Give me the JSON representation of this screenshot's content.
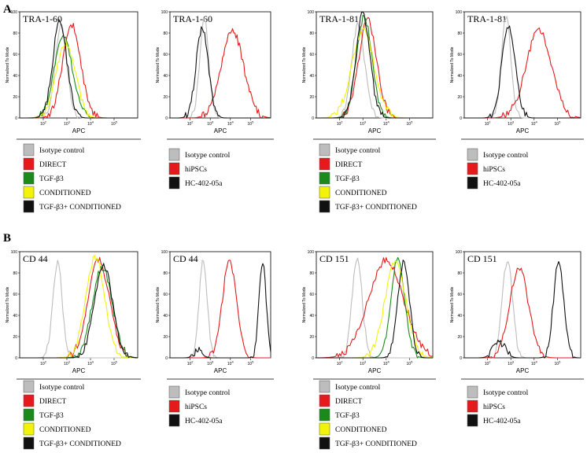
{
  "panels": [
    "A",
    "B"
  ],
  "colors": {
    "isotype": "#bdbdbd",
    "direct": "#e41a1c",
    "tgf": "#1b8a1b",
    "conditioned": "#f2f20a",
    "combo": "#111111",
    "hipscs": "#e41a1c",
    "hc": "#111111"
  },
  "legend_treatment": [
    "Isotype control",
    "DIRECT",
    "TGF-β3",
    "CONDITIONED",
    "TGF-β3+ CONDITIONED"
  ],
  "legend_cells": [
    "Isotype control",
    "hiPSCs",
    "HC-402-05a"
  ],
  "chart_data": [
    {
      "type": "line",
      "panel": "A",
      "title": "TRA-1-60",
      "xlabel": "APC",
      "ylabel": "Normalized To Mode",
      "xscale": "log",
      "xlim": [
        1,
        6
      ],
      "ylim": [
        0,
        100
      ],
      "yticks": [
        0,
        20,
        40,
        60,
        80,
        100
      ],
      "xtick_labels": [
        "10^2",
        "10^3",
        "10^4",
        "10^5"
      ],
      "series": [
        {
          "name": "Isotype control",
          "color": "#bdbdbd",
          "peaks": [
            [
              2.75,
              85,
              0.25
            ]
          ]
        },
        {
          "name": "DIRECT",
          "color": "#e41a1c",
          "peaks": [
            [
              3.2,
              88,
              0.38
            ]
          ]
        },
        {
          "name": "TGF-β3",
          "color": "#1b8a1b",
          "peaks": [
            [
              2.85,
              78,
              0.38
            ]
          ]
        },
        {
          "name": "CONDITIONED",
          "color": "#f2f20a",
          "peaks": [
            [
              2.95,
              72,
              0.4
            ]
          ]
        },
        {
          "name": "TGF-β3+ CONDITIONED",
          "color": "#111111",
          "peaks": [
            [
              2.7,
              90,
              0.3
            ]
          ]
        }
      ]
    },
    {
      "type": "line",
      "panel": "A",
      "title": "TRA-1-60",
      "xlabel": "APC",
      "ylabel": "Normalized To Mode",
      "xscale": "log",
      "xlim": [
        1,
        6
      ],
      "ylim": [
        0,
        100
      ],
      "yticks": [
        0,
        20,
        40,
        60,
        80,
        100
      ],
      "xtick_labels": [
        "10^2",
        "10^3",
        "10^4",
        "10^5"
      ],
      "series": [
        {
          "name": "Isotype control",
          "color": "#bdbdbd",
          "peaks": [
            [
              2.7,
              95,
              0.22
            ]
          ]
        },
        {
          "name": "hiPSCs",
          "color": "#e41a1c",
          "peaks": [
            [
              4.1,
              82,
              0.55
            ]
          ]
        },
        {
          "name": "HC-402-05a",
          "color": "#111111",
          "peaks": [
            [
              2.6,
              85,
              0.3
            ]
          ]
        }
      ]
    },
    {
      "type": "line",
      "panel": "A",
      "title": "TRA-1-81",
      "xlabel": "APC",
      "ylabel": "Normalized To Mode",
      "xscale": "log",
      "xlim": [
        1,
        6
      ],
      "ylim": [
        0,
        100
      ],
      "yticks": [
        0,
        20,
        40,
        60,
        80,
        100
      ],
      "xtick_labels": [
        "10^2",
        "10^3",
        "10^4",
        "10^5"
      ],
      "series": [
        {
          "name": "Isotype control",
          "color": "#bdbdbd",
          "peaks": [
            [
              2.8,
              88,
              0.28
            ]
          ]
        },
        {
          "name": "DIRECT",
          "color": "#e41a1c",
          "peaks": [
            [
              3.2,
              92,
              0.38
            ]
          ]
        },
        {
          "name": "TGF-β3",
          "color": "#1b8a1b",
          "peaks": [
            [
              3.05,
              95,
              0.33
            ]
          ]
        },
        {
          "name": "CONDITIONED",
          "color": "#f2f20a",
          "peaks": [
            [
              3.0,
              82,
              0.48
            ]
          ]
        },
        {
          "name": "TGF-β3+ CONDITIONED",
          "color": "#111111",
          "peaks": [
            [
              3.0,
              98,
              0.3
            ]
          ]
        }
      ]
    },
    {
      "type": "line",
      "panel": "A",
      "title": "TRA-1-81",
      "xlabel": "APC",
      "ylabel": "Normalized To Mode",
      "xscale": "log",
      "xlim": [
        1,
        6
      ],
      "ylim": [
        0,
        100
      ],
      "yticks": [
        0,
        20,
        40,
        60,
        80,
        100
      ],
      "xtick_labels": [
        "10^2",
        "10^3",
        "10^4",
        "10^5"
      ],
      "series": [
        {
          "name": "Isotype control",
          "color": "#bdbdbd",
          "peaks": [
            [
              2.8,
              95,
              0.2
            ]
          ]
        },
        {
          "name": "hiPSCs",
          "color": "#e41a1c",
          "peaks": [
            [
              4.2,
              82,
              0.55
            ]
          ]
        },
        {
          "name": "HC-402-05a",
          "color": "#111111",
          "peaks": [
            [
              2.9,
              88,
              0.28
            ]
          ]
        }
      ]
    },
    {
      "type": "line",
      "panel": "B",
      "title": "CD 44",
      "xlabel": "APC",
      "ylabel": "Normalized To Mode",
      "xscale": "log",
      "xlim": [
        1,
        6
      ],
      "ylim": [
        0,
        100
      ],
      "yticks": [
        0,
        20,
        40,
        60,
        80,
        100
      ],
      "xtick_labels": [
        "10^2",
        "10^3",
        "10^4",
        "10^5"
      ],
      "series": [
        {
          "name": "Isotype control",
          "color": "#bdbdbd",
          "peaks": [
            [
              2.6,
              90,
              0.2
            ]
          ]
        },
        {
          "name": "DIRECT",
          "color": "#e41a1c",
          "peaks": [
            [
              4.35,
              92,
              0.45
            ]
          ]
        },
        {
          "name": "TGF-β3",
          "color": "#1b8a1b",
          "peaks": [
            [
              4.5,
              85,
              0.42
            ]
          ]
        },
        {
          "name": "CONDITIONED",
          "color": "#f2f20a",
          "peaks": [
            [
              4.2,
              95,
              0.4
            ]
          ]
        },
        {
          "name": "TGF-β3+ CONDITIONED",
          "color": "#111111",
          "peaks": [
            [
              4.55,
              87,
              0.38
            ]
          ]
        }
      ]
    },
    {
      "type": "line",
      "panel": "B",
      "title": "CD 44",
      "xlabel": "APC",
      "ylabel": "Normalized To Mode",
      "xscale": "log",
      "xlim": [
        1,
        6
      ],
      "ylim": [
        0,
        100
      ],
      "yticks": [
        0,
        20,
        40,
        60,
        80,
        100
      ],
      "xtick_labels": [
        "10^2",
        "10^3",
        "10^4",
        "10^5"
      ],
      "series": [
        {
          "name": "Isotype control",
          "color": "#bdbdbd",
          "peaks": [
            [
              2.65,
              92,
              0.2
            ]
          ]
        },
        {
          "name": "hiPSCs",
          "color": "#e41a1c",
          "peaks": [
            [
              3.95,
              90,
              0.35
            ]
          ]
        },
        {
          "name": "HC-402-05a",
          "color": "#111111",
          "peaks": [
            [
              5.6,
              90,
              0.18
            ],
            [
              2.4,
              8,
              0.2
            ]
          ]
        }
      ]
    },
    {
      "type": "line",
      "panel": "B",
      "title": "CD 151",
      "xlabel": "APC",
      "ylabel": "Normalized To Mode",
      "xscale": "log",
      "xlim": [
        1,
        6
      ],
      "ylim": [
        0,
        100
      ],
      "yticks": [
        0,
        20,
        40,
        60,
        80,
        100
      ],
      "xtick_labels": [
        "10^2",
        "10^3",
        "10^4",
        "10^5"
      ],
      "series": [
        {
          "name": "Isotype control",
          "color": "#bdbdbd",
          "peaks": [
            [
              2.75,
              92,
              0.22
            ]
          ]
        },
        {
          "name": "DIRECT",
          "color": "#e41a1c",
          "peaks": [
            [
              4.0,
              92,
              0.75
            ]
          ]
        },
        {
          "name": "TGF-β3",
          "color": "#1b8a1b",
          "peaks": [
            [
              4.5,
              92,
              0.3
            ]
          ]
        },
        {
          "name": "CONDITIONED",
          "color": "#f2f20a",
          "peaks": [
            [
              4.4,
              90,
              0.45
            ]
          ]
        },
        {
          "name": "TGF-β3+ CONDITIONED",
          "color": "#111111",
          "peaks": [
            [
              4.75,
              90,
              0.25
            ]
          ]
        }
      ]
    },
    {
      "type": "line",
      "panel": "B",
      "title": "CD 151",
      "xlabel": "APC",
      "ylabel": "Normalized To Mode",
      "xscale": "log",
      "xlim": [
        1,
        6
      ],
      "ylim": [
        0,
        100
      ],
      "yticks": [
        0,
        20,
        40,
        60,
        80,
        100
      ],
      "xtick_labels": [
        "10^2",
        "10^3",
        "10^4",
        "10^5"
      ],
      "series": [
        {
          "name": "Isotype control",
          "color": "#bdbdbd",
          "peaks": [
            [
              2.85,
              92,
              0.22
            ]
          ]
        },
        {
          "name": "hiPSCs",
          "color": "#e41a1c",
          "peaks": [
            [
              3.35,
              85,
              0.4
            ]
          ]
        },
        {
          "name": "HC-402-05a",
          "color": "#111111",
          "peaks": [
            [
              5.05,
              90,
              0.22
            ],
            [
              2.5,
              15,
              0.25
            ]
          ]
        }
      ]
    }
  ]
}
